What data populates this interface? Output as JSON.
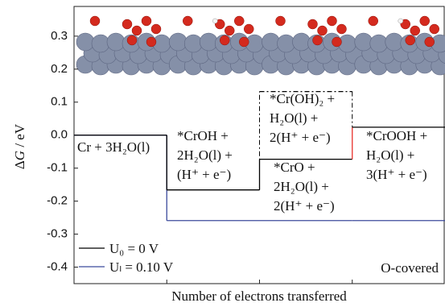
{
  "chart_data": {
    "type": "step",
    "y_label_symbol": "G",
    "y_label_prefix": "Δ",
    "y_label_suffix": " / eV",
    "x_label": "Number of electrons transferred",
    "annotation": "O-covered",
    "categories": [
      null,
      null,
      null,
      null
    ],
    "series": [
      {
        "name": "U₀ = 0 V",
        "color": "#000000",
        "values": [
          0,
          -0.166,
          -0.073,
          0.024
        ],
        "connector_colors": [
          "#000000",
          "#000000",
          "#e8302a"
        ]
      },
      {
        "name": "Uₗ = 0.10 V",
        "color": "#3b4a9c",
        "values": [
          0,
          -0.259,
          -0.259,
          -0.259
        ],
        "connector_colors": [
          "#3b4a9c",
          "#3b4a9c",
          "#3b4a9c"
        ]
      }
    ],
    "alternative": {
      "step": 2,
      "value": 0.132,
      "color": "#000000",
      "style": "dashdot"
    },
    "states": [
      {
        "lines": [
          "Cr + 3H₂O(l)"
        ]
      },
      {
        "lines": [
          "*CrOH +",
          "2H₂O(l) +",
          "(H⁺ + e⁻)"
        ]
      },
      {
        "lines": [
          "*Cr(OH)₂ +",
          "H₂O(l) +",
          "2(H⁺ + e⁻)"
        ]
      },
      {
        "lines": [
          "*CrO +",
          "2H₂O(l) +",
          "2(H⁺ + e⁻)"
        ]
      },
      {
        "lines": [
          "*CrOOH +",
          "H₂O(l) +",
          "3(H⁺ + e⁻)"
        ]
      }
    ],
    "ylim": [
      -0.45,
      0.39
    ],
    "yticks": [
      -0.4,
      -0.3,
      -0.2,
      -0.1,
      {
        "value": 0,
        "label": "0.0"
      },
      0.1,
      0.2,
      0.3
    ]
  }
}
